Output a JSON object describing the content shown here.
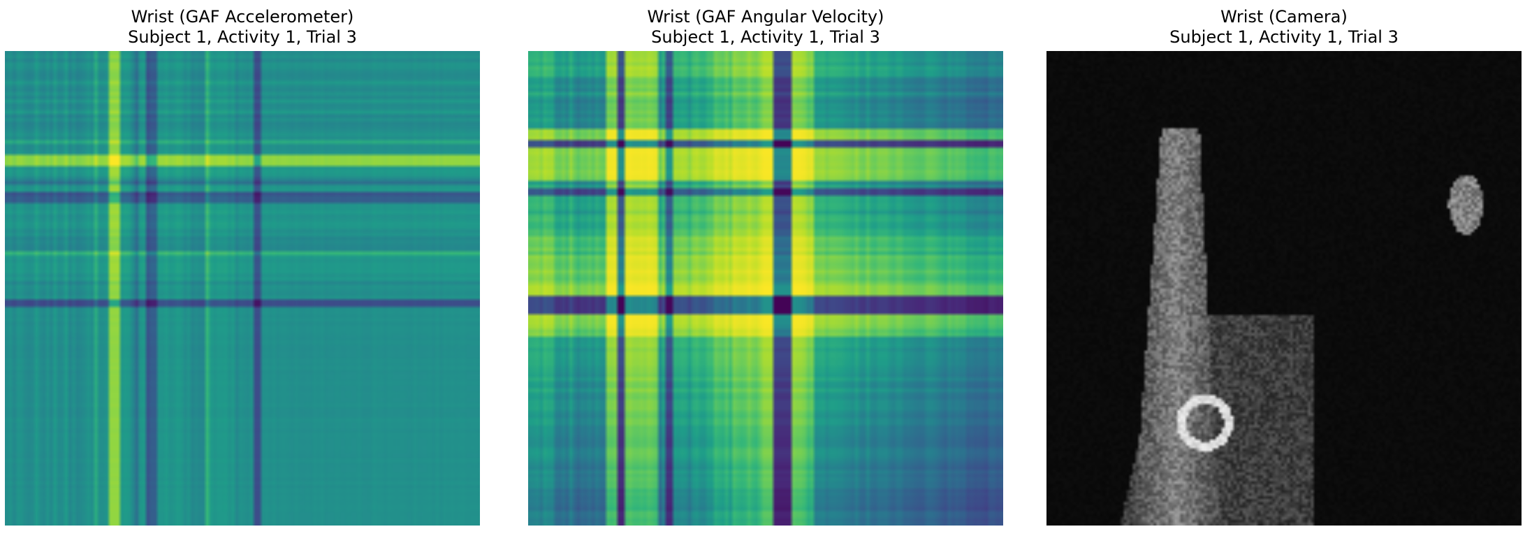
{
  "figure": {
    "panels": [
      {
        "title_line1": "Wrist (GAF Accelerometer)",
        "title_line2": "Subject 1, Activity 1, Trial 3",
        "colormap": "viridis"
      },
      {
        "title_line1": "Wrist (GAF Angular Velocity)",
        "title_line2": "Subject 1, Activity 1, Trial 3",
        "colormap": "viridis"
      },
      {
        "title_line1": "Wrist (Camera)",
        "title_line2": "Subject 1, Activity 1, Trial 3",
        "colormap": "gray"
      }
    ]
  },
  "chart_data": [
    {
      "type": "heatmap",
      "title": "Wrist (GAF Accelerometer)\nSubject 1, Activity 1, Trial 3",
      "colormap": "viridis",
      "axes": "off",
      "grid": false,
      "legend": "none",
      "values": "Gramian Angular Field of wrist accelerometer; strong bright (yellow) and dark (purple) bands at about 23%, 30% and 53% of the series, smooth teal in the latter half"
    },
    {
      "type": "heatmap",
      "title": "Wrist (GAF Angular Velocity)\nSubject 1, Activity 1, Trial 3",
      "colormap": "viridis",
      "axes": "off",
      "grid": false,
      "legend": "none",
      "values": "Gramian Angular Field of wrist angular velocity; bright yellow columns around 18–26% and 50–57%, dark purple rows around 19%, 29% and 53%"
    },
    {
      "type": "heatmap",
      "title": "Wrist (Camera)\nSubject 1, Activity 1, Trial 3",
      "colormap": "gray",
      "axes": "off",
      "grid": false,
      "legend": "none",
      "values": "Grayscale depth/IR camera frame showing a hand/arm silhouette rising from bottom center and a small bright object at upper right"
    }
  ]
}
